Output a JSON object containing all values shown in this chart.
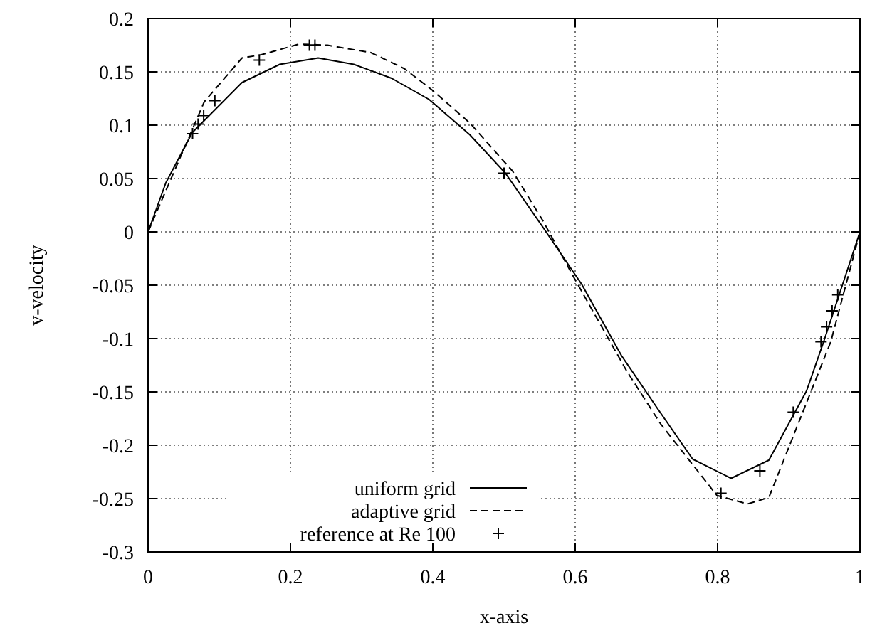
{
  "chart_data": {
    "type": "line",
    "xlabel": "x-axis",
    "ylabel": "v-velocity",
    "xlim": [
      0,
      1
    ],
    "ylim": [
      -0.3,
      0.2
    ],
    "xticks": [
      0,
      0.2,
      0.4,
      0.6,
      0.8,
      1
    ],
    "yticks": [
      -0.3,
      -0.25,
      -0.2,
      -0.15,
      -0.1,
      -0.05,
      0,
      0.05,
      0.1,
      0.15,
      0.2
    ],
    "grid": true,
    "legend": "bottom",
    "series": [
      {
        "name": "uniform grid",
        "type": "line",
        "line_style": "solid",
        "color": "#000000",
        "x": [
          0,
          0.025,
          0.062,
          0.132,
          0.185,
          0.239,
          0.289,
          0.342,
          0.395,
          0.452,
          0.502,
          0.555,
          0.609,
          0.665,
          0.715,
          0.765,
          0.819,
          0.872,
          0.925,
          0.949,
          1
        ],
        "values": [
          0,
          0.046,
          0.093,
          0.14,
          0.157,
          0.163,
          0.157,
          0.144,
          0.124,
          0.091,
          0.055,
          0.004,
          -0.049,
          -0.116,
          -0.165,
          -0.213,
          -0.231,
          -0.214,
          -0.149,
          -0.103,
          0
        ]
      },
      {
        "name": "adaptive grid",
        "type": "line",
        "line_style": "dashed",
        "color": "#000000",
        "x": [
          0,
          0.079,
          0.132,
          0.159,
          0.212,
          0.252,
          0.313,
          0.36,
          0.399,
          0.452,
          0.512,
          0.555,
          0.6,
          0.672,
          0.72,
          0.799,
          0.842,
          0.872,
          0.959,
          1
        ],
        "values": [
          0,
          0.122,
          0.163,
          0.166,
          0.176,
          0.175,
          0.168,
          0.153,
          0.133,
          0.102,
          0.057,
          0.01,
          -0.045,
          -0.13,
          -0.18,
          -0.247,
          -0.255,
          -0.249,
          -0.103,
          0
        ]
      },
      {
        "name": "reference at Re 100",
        "type": "scatter",
        "marker": "cross",
        "color": "#000000",
        "x": [
          0.0625,
          0.0703,
          0.0781,
          0.0938,
          0.1563,
          0.2266,
          0.2344,
          0.5,
          0.8047,
          0.8594,
          0.9063,
          0.9453,
          0.9531,
          0.9609,
          0.9688
        ],
        "values": [
          0.092,
          0.101,
          0.109,
          0.123,
          0.161,
          0.175,
          0.175,
          0.055,
          -0.245,
          -0.224,
          -0.169,
          -0.103,
          -0.089,
          -0.074,
          -0.059
        ]
      }
    ]
  }
}
